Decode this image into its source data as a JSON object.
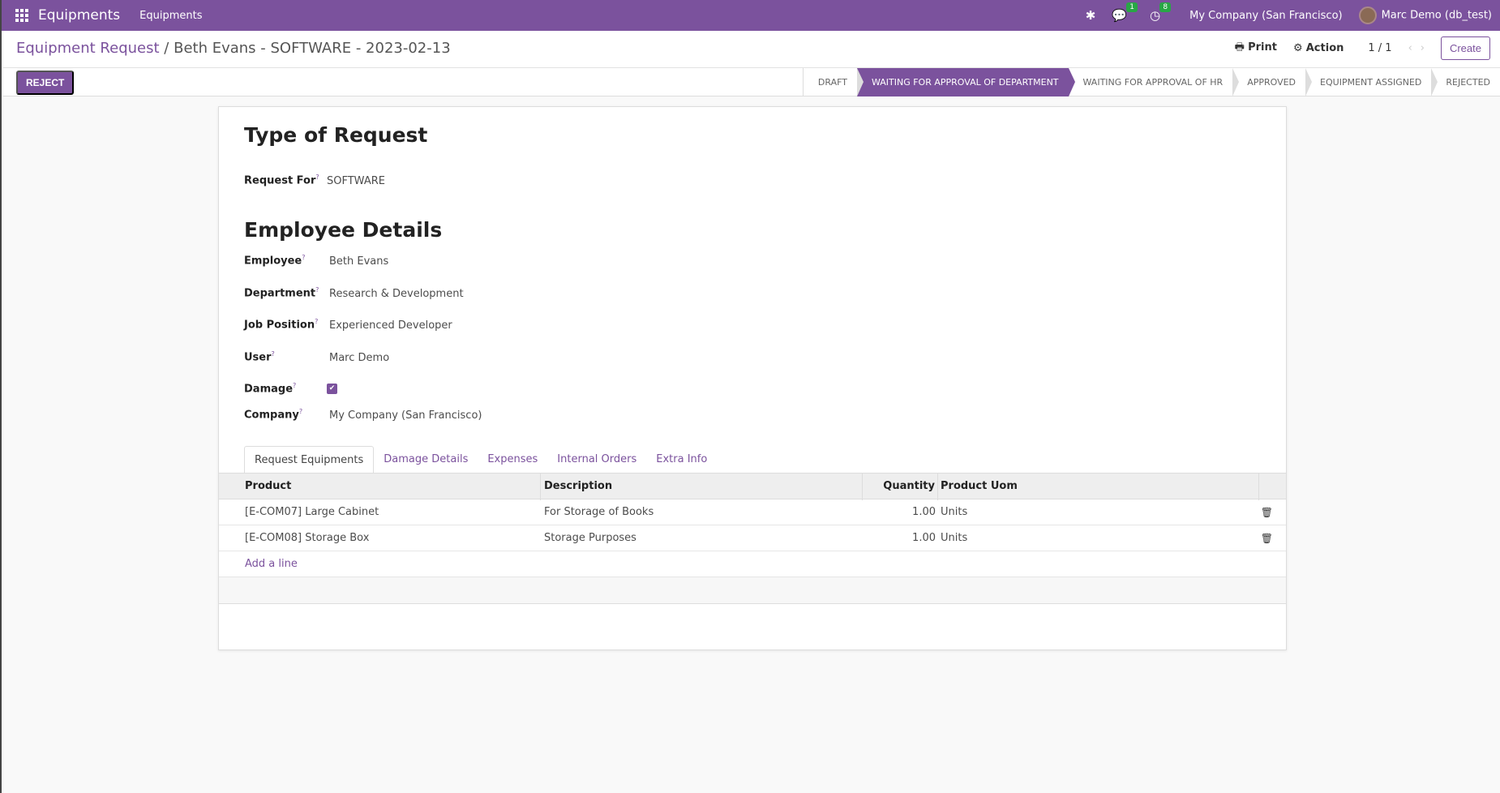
{
  "navbar": {
    "app": "Equipments",
    "menu": "Equipments",
    "company": "My Company (San Francisco)",
    "user": "Marc Demo (db_test)",
    "messages_count": "1",
    "activities_count": "8",
    "icons": [
      "apps-grid-icon",
      "bug-icon",
      "chat-icon",
      "clock-icon"
    ]
  },
  "breadcrumb": {
    "parent": "Equipment Request",
    "sep": "/",
    "current": "Beth Evans - SOFTWARE - 2023-02-13"
  },
  "toolbar": {
    "print": "Print",
    "action": "Action",
    "pager": "1 / 1",
    "create": "Create",
    "reject": "REJECT"
  },
  "statusbar": {
    "stages": [
      "DRAFT",
      "WAITING FOR APPROVAL OF DEPARTMENT",
      "WAITING FOR APPROVAL OF HR",
      "APPROVED",
      "EQUIPMENT ASSIGNED",
      "REJECTED"
    ],
    "active": "WAITING FOR APPROVAL OF DEPARTMENT"
  },
  "form": {
    "section1": "Type of Request",
    "request_for": {
      "label": "Request For",
      "value": "SOFTWARE"
    },
    "section2": "Employee Details",
    "employee": {
      "label": "Employee",
      "value": "Beth Evans"
    },
    "department": {
      "label": "Department",
      "value": "Research & Development"
    },
    "job": {
      "label": "Job Position",
      "value": "Experienced Developer"
    },
    "user": {
      "label": "User",
      "value": "Marc Demo"
    },
    "damage": {
      "label": "Damage",
      "checked": true
    },
    "company": {
      "label": "Company",
      "value": "My Company (San Francisco)"
    },
    "help": "?"
  },
  "tabs": [
    "Request Equipments",
    "Damage Details",
    "Expenses",
    "Internal Orders",
    "Extra Info"
  ],
  "table": {
    "headers": [
      "Product",
      "Description",
      "Quantity",
      "Product Uom"
    ],
    "rows": [
      [
        "[E-COM07] Large Cabinet",
        "For Storage of Books",
        "1.00",
        "Units"
      ],
      [
        "[E-COM08] Storage Box",
        "Storage Purposes",
        "1.00",
        "Units"
      ]
    ],
    "add_line": "Add a line"
  },
  "colors": {
    "brand": "#7b529d",
    "badge": "#28a745"
  }
}
